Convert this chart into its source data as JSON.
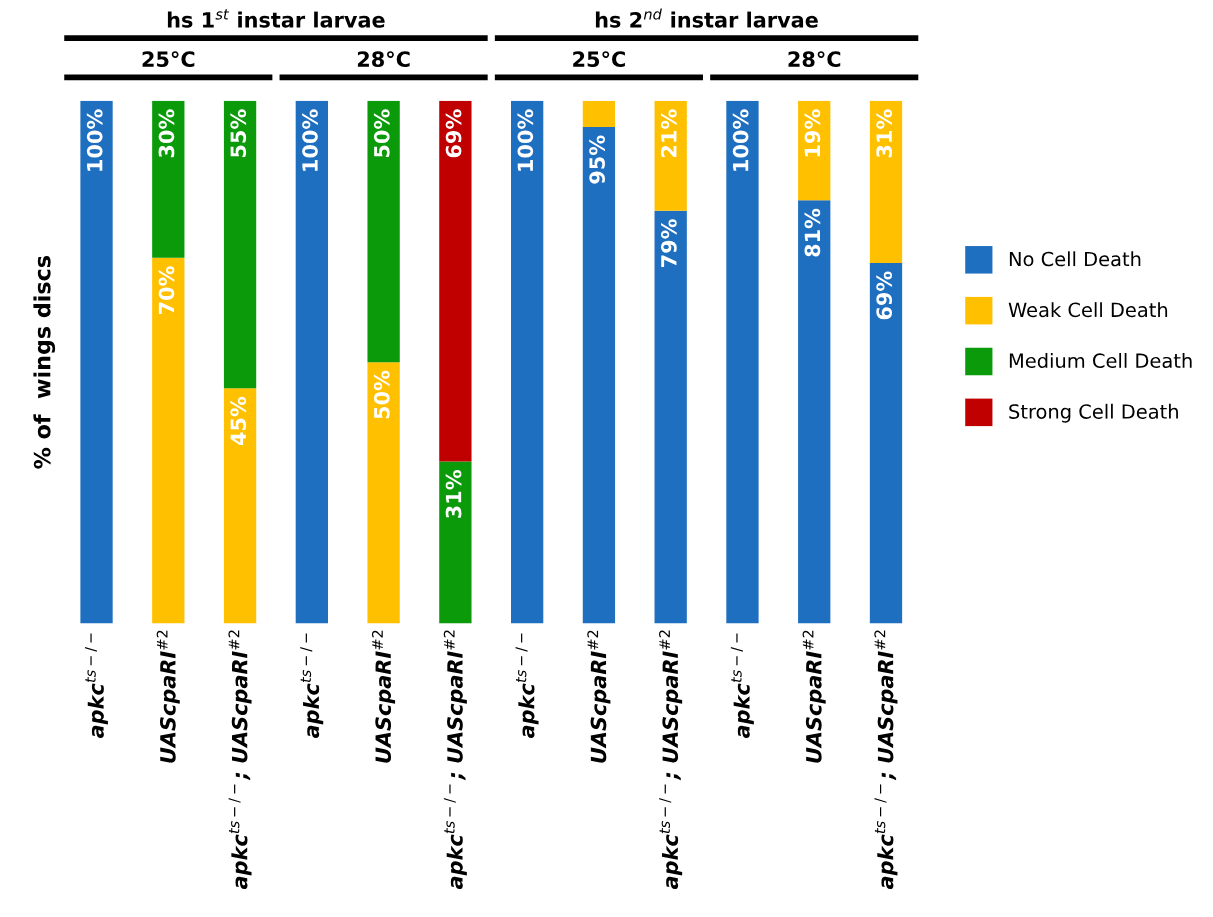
{
  "chart_data": {
    "type": "bar",
    "stacked": true,
    "ylabel": "% of  wings discs",
    "categories": [
      "apkc$^{ts−/−}$",
      "UAScpaRI$^{#2}$",
      "apkc$^{ts−/−}$; UAScpaRI$^{#2}$",
      "apkc$^{ts−/−}$",
      "UAScpaRI$^{#2}$",
      "apkc$^{ts−/−}$; UAScpaRI$^{#2}$",
      "apkc$^{ts−/−}$",
      "UAScpaRI$^{#2}$",
      "apkc$^{ts−/−}$; UAScpaRI$^{#2}$",
      "apkc$^{ts−/−}$",
      "UAScpaRI$^{#2}$",
      "apkc$^{ts−/−}$; UAScpaRI$^{#2}$"
    ],
    "annotations": [
      "hs 1$^{st}$ instar larvae",
      "hs 2$^{nd}$ instar larvae",
      "25°C",
      "28°C",
      "25°C",
      "28°C"
    ],
    "series": [
      {
        "name": "No Cell Death",
        "color": "#1f6fc0",
        "values": [
          100,
          0,
          0,
          100,
          0,
          0,
          100,
          95,
          79,
          100,
          81,
          69
        ],
        "value_labels": [
          "100%",
          null,
          null,
          "100%",
          null,
          null,
          "100%",
          "95%",
          "79%",
          "100%",
          "81%",
          "69%"
        ]
      },
      {
        "name": "Weak Cell Death",
        "color": "#ffc000",
        "values": [
          0,
          70,
          45,
          0,
          50,
          0,
          0,
          5,
          21,
          0,
          19,
          31
        ],
        "value_labels": [
          null,
          "70%",
          "45%",
          null,
          "50%",
          null,
          null,
          null,
          "21%",
          null,
          "19%",
          "31%"
        ]
      },
      {
        "name": "Medium Cell Death",
        "color": "#0a9a0a",
        "values": [
          0,
          30,
          55,
          0,
          50,
          31,
          0,
          0,
          0,
          0,
          0,
          0
        ],
        "value_labels": [
          null,
          "30%",
          "55%",
          null,
          "50%",
          "31%",
          null,
          null,
          null,
          null,
          null,
          null
        ]
      },
      {
        "name": "Strong Cell Death",
        "color": "#c00000",
        "values": [
          0,
          0,
          0,
          0,
          0,
          69,
          0,
          0,
          0,
          0,
          0,
          0
        ],
        "value_labels": [
          null,
          null,
          null,
          null,
          null,
          "69%",
          null,
          null,
          null,
          null,
          null,
          null
        ]
      }
    ],
    "ylim": [
      0,
      100
    ],
    "tick_labels": "x",
    "legend": "right",
    "grid": false
  }
}
